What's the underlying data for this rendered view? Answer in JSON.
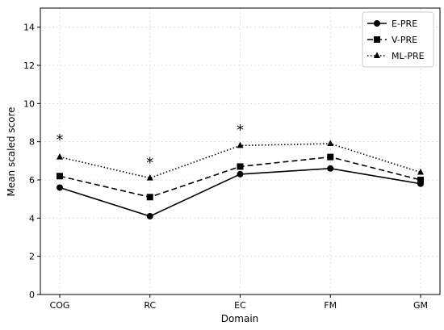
{
  "chart_data": {
    "type": "line",
    "title": "",
    "xlabel": "Domain",
    "ylabel": "Mean scaled score",
    "categories": [
      "COG",
      "RC",
      "EC",
      "FM",
      "GM"
    ],
    "ylim": [
      0,
      15
    ],
    "yticks": [
      0,
      2,
      4,
      6,
      8,
      10,
      12,
      14
    ],
    "grid": true,
    "legend_position": "top-right",
    "series": [
      {
        "name": "E-PRE",
        "values": [
          5.6,
          4.1,
          6.3,
          6.6,
          5.8
        ],
        "marker": "circle",
        "linestyle": "solid",
        "color": "#000000"
      },
      {
        "name": "V-PRE",
        "values": [
          6.2,
          5.1,
          6.7,
          7.2,
          6.0
        ],
        "marker": "square",
        "linestyle": "dashed",
        "color": "#000000"
      },
      {
        "name": "ML-PRE",
        "values": [
          7.2,
          6.1,
          7.8,
          7.9,
          6.4
        ],
        "marker": "triangle",
        "linestyle": "dotted",
        "color": "#000000"
      }
    ],
    "annotations": [
      {
        "text": "*",
        "category": "COG",
        "y": 8.2
      },
      {
        "text": "*",
        "category": "RC",
        "y": 7.0
      },
      {
        "text": "*",
        "category": "EC",
        "y": 8.7
      }
    ]
  }
}
